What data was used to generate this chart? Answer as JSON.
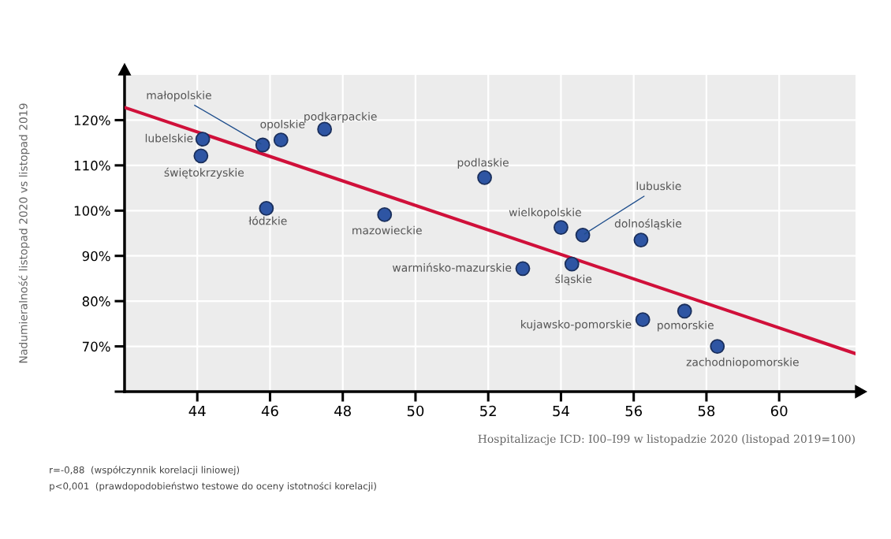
{
  "chart_data": {
    "type": "scatter",
    "xlabel": "Hospitalizacje ICD: I00–I99 w listopadzie 2020 (listopad 2019=100)",
    "ylabel": "Nadumieralność listopad 2020 vs listopad 2019",
    "xlim": [
      42,
      62.1
    ],
    "ylim": [
      60,
      130
    ],
    "xticks": [
      44,
      46,
      48,
      50,
      52,
      54,
      56,
      58,
      60
    ],
    "yticks": [
      {
        "value": 60,
        "label": null
      },
      {
        "value": 70,
        "label": "70%"
      },
      {
        "value": 80,
        "label": "80%"
      },
      {
        "value": 90,
        "label": "90%"
      },
      {
        "value": 100,
        "label": "100%"
      },
      {
        "value": 110,
        "label": "110%"
      },
      {
        "value": 120,
        "label": "120%"
      }
    ],
    "grid": true,
    "legend": false,
    "series": [
      {
        "marker": "circle",
        "color": "#2e55a3",
        "x": [
          44.15,
          44.1,
          45.8,
          46.3,
          47.5,
          45.9,
          49.15,
          51.9,
          54.0,
          54.6,
          56.2,
          52.95,
          54.3,
          56.25,
          57.4,
          58.3
        ],
        "values": [
          115.8,
          112.1,
          114.5,
          115.6,
          118.0,
          100.5,
          99.1,
          107.3,
          96.3,
          94.6,
          93.5,
          87.2,
          88.2,
          75.9,
          77.8,
          70.0
        ]
      },
      {
        "type": "line",
        "marker": "none",
        "color": "#d0103a",
        "x": [
          42,
          62.1
        ],
        "values": [
          122.8,
          68.4
        ]
      }
    ],
    "annotations": [
      {
        "text": "lubelskie",
        "x": 44.15,
        "y": 115.8
      },
      {
        "text": "świętokrzyskie",
        "x": 44.1,
        "y": 112.1
      },
      {
        "text": "małopolskie",
        "x": 45.8,
        "y": 114.5
      },
      {
        "text": "opolskie",
        "x": 46.3,
        "y": 115.6
      },
      {
        "text": "podkarpackie",
        "x": 47.5,
        "y": 118.0
      },
      {
        "text": "łódzkie",
        "x": 45.9,
        "y": 100.5
      },
      {
        "text": "mazowieckie",
        "x": 49.15,
        "y": 99.1
      },
      {
        "text": "podlaskie",
        "x": 51.9,
        "y": 107.3
      },
      {
        "text": "wielkopolskie",
        "x": 54.0,
        "y": 96.3
      },
      {
        "text": "lubuskie",
        "x": 54.6,
        "y": 94.6
      },
      {
        "text": "dolnośląskie",
        "x": 56.2,
        "y": 93.5
      },
      {
        "text": "warmińsko-mazurskie",
        "x": 52.95,
        "y": 87.2
      },
      {
        "text": "śląskie",
        "x": 54.3,
        "y": 88.2
      },
      {
        "text": "kujawsko-pomorskie",
        "x": 56.25,
        "y": 75.9
      },
      {
        "text": "pomorskie",
        "x": 57.4,
        "y": 77.8
      },
      {
        "text": "zachodniopomorskie",
        "x": 58.3,
        "y": 70.0
      },
      "r=-0,88  (współczynnik korelacji liniowej)",
      "p<0,001  (prawdopodobieństwo testowe do oceny istotności korelacji)"
    ]
  }
}
